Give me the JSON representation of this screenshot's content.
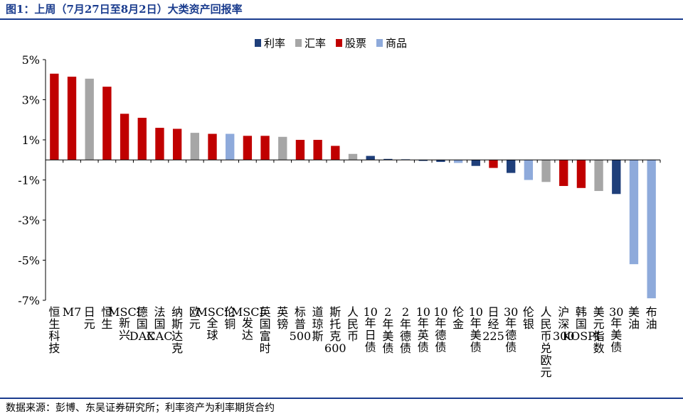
{
  "title": "图1：上周（7月27日至8月2日）大类资产回报率",
  "source": "数据来源：彭博、东吴证券研究所；利率资产为利率期货合约",
  "colors": {
    "利率": "#1f3f7a",
    "汇率": "#a6a6a6",
    "股票": "#c00000",
    "商品": "#8eaadb",
    "rule": "#1a3c8e"
  },
  "legend": [
    {
      "label": "利率",
      "key": "利率"
    },
    {
      "label": "汇率",
      "key": "汇率"
    },
    {
      "label": "股票",
      "key": "股票"
    },
    {
      "label": "商品",
      "key": "商品"
    }
  ],
  "chart_data": {
    "type": "bar",
    "title": "图1：上周（7月27日至8月2日）大类资产回报率",
    "xlabel": "",
    "ylabel": "",
    "ylim": [
      -7,
      5
    ],
    "yticks": [
      5,
      3,
      1,
      -1,
      -3,
      -5,
      -7
    ],
    "ytick_labels": [
      "5%",
      "3%",
      "1%",
      "-1%",
      "-3%",
      "-5%",
      "-7%"
    ],
    "grid": false,
    "legend_position": "top",
    "categories": [
      "恒生科技",
      "M7",
      "日元",
      "恒生",
      "MSCI新兴",
      "德国DAX",
      "法国CAC",
      "纳斯达克",
      "欧元",
      "MSCI全球",
      "伦铜",
      "MSCI发达",
      "英国富时",
      "英镑",
      "标普500",
      "道琼斯",
      "斯托克600",
      "人民币",
      "10年日债",
      "2年美债",
      "2年德债",
      "10年英债",
      "10年德债",
      "伦金",
      "10年美债",
      "日经225",
      "30年德债",
      "伦银",
      "人民币兑欧元",
      "沪深300",
      "韩国KOSPI",
      "美元指数",
      "30年美债",
      "美油",
      "布油"
    ],
    "values": [
      4.3,
      4.15,
      4.05,
      3.65,
      2.3,
      2.1,
      1.6,
      1.55,
      1.35,
      1.3,
      1.3,
      1.2,
      1.2,
      1.15,
      1.0,
      1.0,
      0.7,
      0.3,
      0.2,
      0.05,
      0.03,
      -0.05,
      -0.1,
      -0.15,
      -0.3,
      -0.4,
      -0.65,
      -1.0,
      -1.1,
      -1.3,
      -1.4,
      -1.55,
      -1.7,
      -5.2,
      -6.9
    ],
    "groups": [
      "股票",
      "股票",
      "汇率",
      "股票",
      "股票",
      "股票",
      "股票",
      "股票",
      "汇率",
      "股票",
      "商品",
      "股票",
      "股票",
      "汇率",
      "股票",
      "股票",
      "股票",
      "汇率",
      "利率",
      "利率",
      "利率",
      "利率",
      "利率",
      "商品",
      "利率",
      "股票",
      "利率",
      "商品",
      "汇率",
      "股票",
      "股票",
      "汇率",
      "利率",
      "商品",
      "商品"
    ],
    "series_names": [
      "利率",
      "汇率",
      "股票",
      "商品"
    ]
  }
}
